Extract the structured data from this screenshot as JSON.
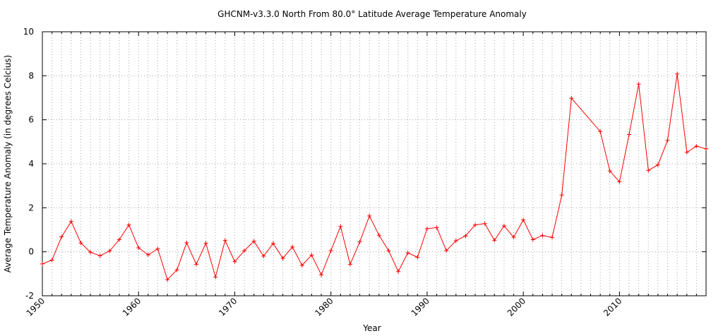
{
  "chart_data": {
    "type": "line",
    "title": "GHCNM-v3.3.0 North From 80.0° Latitude Average Temperature Anomaly",
    "xlabel": "Year",
    "ylabel": "Average Temperature Anomaly (in degrees Celcius)",
    "xlim": [
      1950,
      2019
    ],
    "ylim": [
      -2,
      10
    ],
    "x_ticks": [
      "1950",
      "1960",
      "1970",
      "1980",
      "1990",
      "2000",
      "2010"
    ],
    "y_ticks": [
      "-2",
      "0",
      "2",
      "4",
      "6",
      "8",
      "10"
    ],
    "grid": true,
    "colors": {
      "series": "#ff0000"
    },
    "series": [
      {
        "x": [
          1950,
          1951,
          1952,
          1953,
          1954,
          1955,
          1956,
          1957,
          1958,
          1959,
          1960,
          1961,
          1962,
          1963,
          1964,
          1965,
          1966,
          1967,
          1968,
          1969,
          1970,
          1971,
          1972,
          1973,
          1974,
          1975,
          1976,
          1977,
          1978,
          1979,
          1980,
          1981,
          1982,
          1983,
          1984,
          1985,
          1986,
          1987,
          1988,
          1989,
          1990,
          1991,
          1992,
          1993,
          1994,
          1995,
          1996,
          1997,
          1998,
          1999,
          2000,
          2001,
          2002,
          2003,
          2004,
          2005,
          2008,
          2009,
          2010,
          2011,
          2012,
          2013,
          2014,
          2015,
          2016,
          2017,
          2018,
          2019
        ],
        "values": [
          -0.55,
          -0.38,
          0.68,
          1.38,
          0.4,
          -0.02,
          -0.18,
          0.04,
          0.55,
          1.22,
          0.18,
          -0.14,
          0.13,
          -1.27,
          -0.82,
          0.41,
          -0.57,
          0.39,
          -1.15,
          0.52,
          -0.45,
          0.05,
          0.48,
          -0.2,
          0.38,
          -0.3,
          0.22,
          -0.62,
          -0.15,
          -1.05,
          0.05,
          1.15,
          -0.57,
          0.45,
          1.63,
          0.75,
          0.05,
          -0.9,
          -0.05,
          -0.25,
          1.05,
          1.1,
          0.05,
          0.5,
          0.72,
          1.22,
          1.28,
          0.52,
          1.18,
          0.66,
          1.45,
          0.55,
          0.74,
          0.65,
          2.58,
          6.98,
          5.47,
          3.67,
          3.18,
          5.33,
          7.62,
          3.7,
          3.95,
          5.07,
          8.08,
          4.52,
          4.8,
          4.68
        ]
      }
    ]
  }
}
